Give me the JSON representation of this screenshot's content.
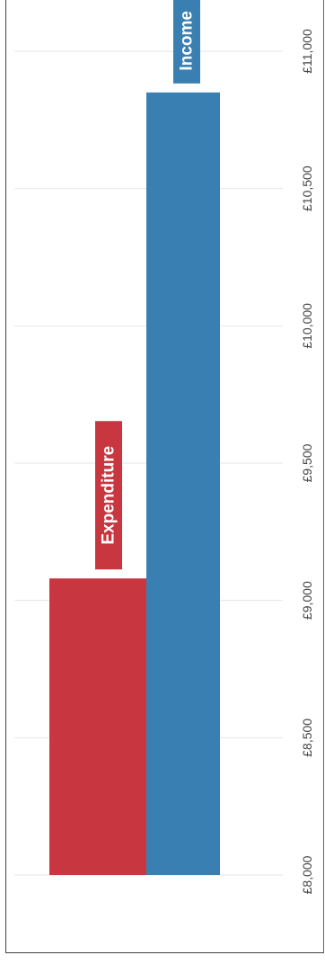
{
  "chart_data": {
    "type": "bar",
    "orientation": "horizontal",
    "rotated": true,
    "title": "",
    "xlabel": "",
    "ylabel": "",
    "xlim": [
      8000,
      11000
    ],
    "ticks": [
      "£8,000",
      "£8,500",
      "£9,000",
      "£9,500",
      "£10,000",
      "£10,500",
      "£11,000"
    ],
    "tick_values": [
      8000,
      8500,
      9000,
      9500,
      10000,
      10500,
      11000
    ],
    "grid": true,
    "categories": [
      "Expenditure",
      "Income"
    ],
    "values": [
      9080,
      10850
    ],
    "colors": [
      "#c8363f",
      "#3a7fb2"
    ]
  }
}
